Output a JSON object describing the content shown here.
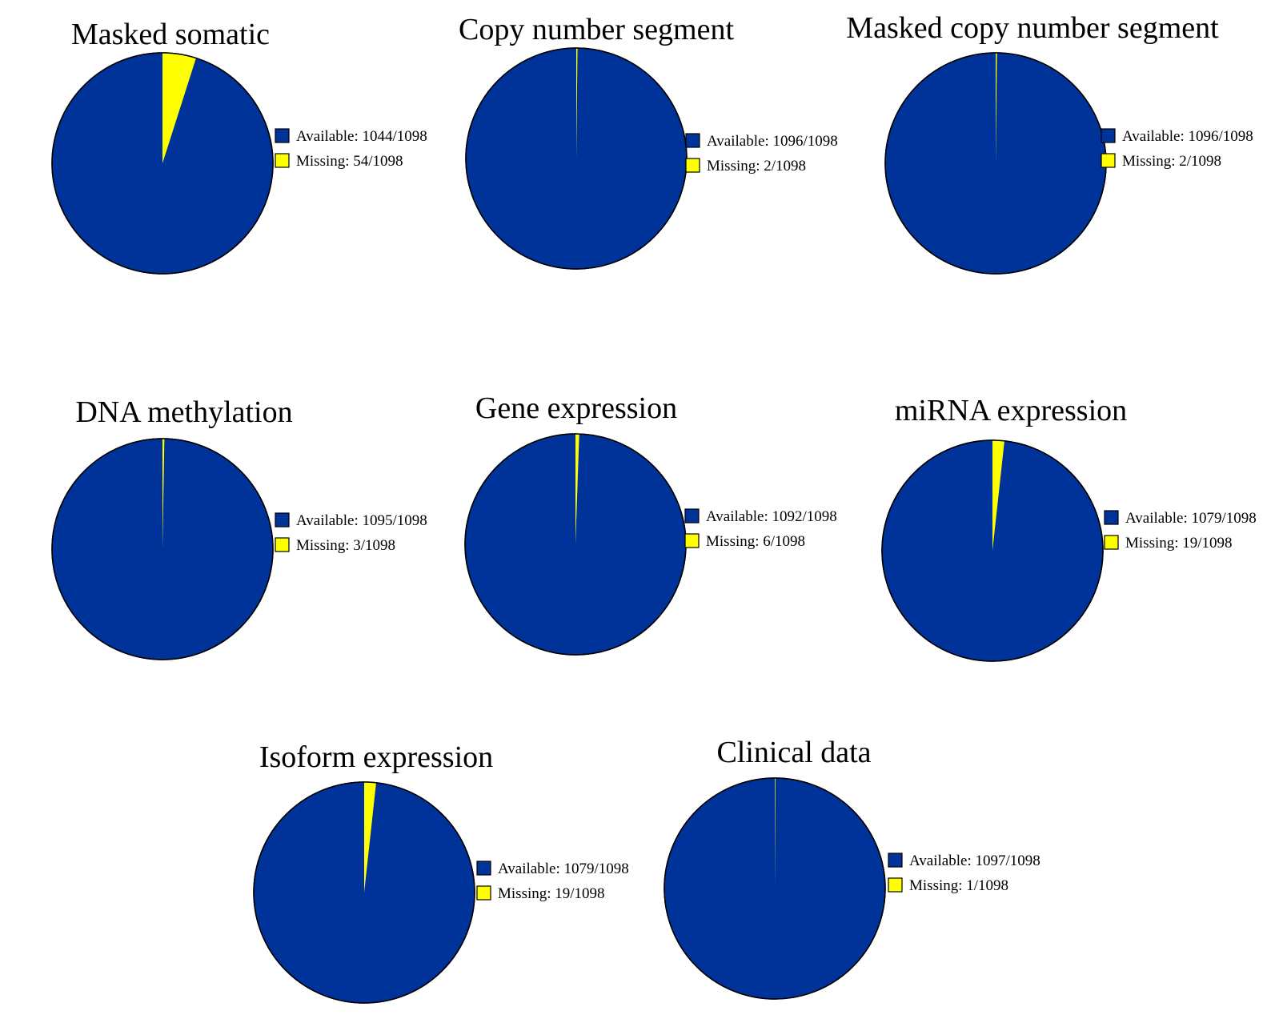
{
  "colors": {
    "available": "#003399",
    "missing": "#FFFF00",
    "outline": "#000000",
    "background": "#FFFFFF"
  },
  "chart_data": [
    {
      "type": "pie",
      "title": "Masked somatic",
      "labels": [
        "Available",
        "Missing"
      ],
      "values": [
        1044,
        54
      ],
      "total": 1098,
      "legend_labels": [
        "Available: 1044/1098",
        "Missing: 54/1098"
      ],
      "legend": "right"
    },
    {
      "type": "pie",
      "title": "Copy number segment",
      "labels": [
        "Available",
        "Missing"
      ],
      "values": [
        1096,
        2
      ],
      "total": 1098,
      "legend_labels": [
        "Available: 1096/1098",
        "Missing: 2/1098"
      ],
      "legend": "right"
    },
    {
      "type": "pie",
      "title": "Masked copy number segment",
      "labels": [
        "Available",
        "Missing"
      ],
      "values": [
        1096,
        2
      ],
      "total": 1098,
      "legend_labels": [
        "Available: 1096/1098",
        "Missing: 2/1098"
      ],
      "legend": "right"
    },
    {
      "type": "pie",
      "title": "DNA methylation",
      "labels": [
        "Available",
        "Missing"
      ],
      "values": [
        1095,
        3
      ],
      "total": 1098,
      "legend_labels": [
        "Available: 1095/1098",
        "Missing: 3/1098"
      ],
      "legend": "right"
    },
    {
      "type": "pie",
      "title": "Gene expression",
      "labels": [
        "Available",
        "Missing"
      ],
      "values": [
        1092,
        6
      ],
      "total": 1098,
      "legend_labels": [
        "Available: 1092/1098",
        "Missing: 6/1098"
      ],
      "legend": "right"
    },
    {
      "type": "pie",
      "title": "miRNA expression",
      "labels": [
        "Available",
        "Missing"
      ],
      "values": [
        1079,
        19
      ],
      "total": 1098,
      "legend_labels": [
        "Available: 1079/1098",
        "Missing: 19/1098"
      ],
      "legend": "right"
    },
    {
      "type": "pie",
      "title": "Isoform expression",
      "labels": [
        "Available",
        "Missing"
      ],
      "values": [
        1079,
        19
      ],
      "total": 1098,
      "legend_labels": [
        "Available: 1079/1098",
        "Missing: 19/1098"
      ],
      "legend": "right"
    },
    {
      "type": "pie",
      "title": "Clinical data",
      "labels": [
        "Available",
        "Missing"
      ],
      "values": [
        1097,
        1
      ],
      "total": 1098,
      "legend_labels": [
        "Available: 1097/1098",
        "Missing: 1/1098"
      ],
      "legend": "right"
    }
  ]
}
